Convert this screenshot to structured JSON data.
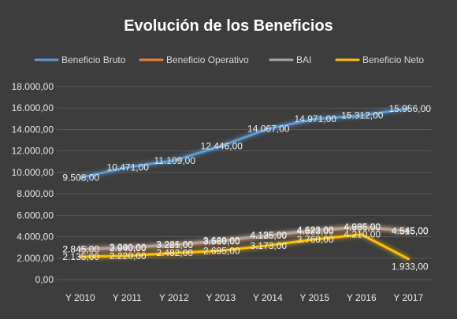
{
  "chart_data": {
    "type": "line",
    "title": "Evolución de los Beneficios",
    "xlabel": "",
    "ylabel": "",
    "categories": [
      "Y 2010",
      "Y 2011",
      "Y 2012",
      "Y 2013",
      "Y 2014",
      "Y 2015",
      "Y 2016",
      "Y 2017"
    ],
    "ylim": [
      0,
      18000
    ],
    "yticks": [
      "0,00",
      "2.000,00",
      "4.000,00",
      "6.000,00",
      "8.000,00",
      "10.000,00",
      "12.000,00",
      "14.000,00",
      "16.000,00",
      "18.000,00"
    ],
    "grid": true,
    "legend_position": "top",
    "series": [
      {
        "name": "Beneficio Bruto",
        "color": "#5b9bd5",
        "values": [
          9508,
          10471,
          11109,
          12446,
          14067,
          14971,
          15312,
          15956
        ],
        "labels": [
          "9.508,00",
          "10.471,00",
          "11.109,00",
          "12.446,00",
          "14.067,00",
          "14.971,00",
          "15.312,00",
          "15.956,00"
        ]
      },
      {
        "name": "Beneficio Operativo",
        "color": "#ed7d31",
        "values": [
          2845,
          2940,
          3225,
          3560,
          4135,
          4523,
          4886,
          4515
        ],
        "labels": [
          "2.845,00",
          "2.940,00",
          "3.225,00",
          "3.560,00",
          "4.135,00",
          "4.523,00",
          "4.886,00",
          "4.515,00"
        ]
      },
      {
        "name": "BAI",
        "color": "#a5a5a5",
        "values": [
          2845,
          3000,
          3281,
          3629,
          4125,
          4622,
          4935,
          4545
        ],
        "labels": [
          "2.845,00",
          "3.000,00",
          "3.281,00",
          "3.629,00",
          "4.125,00",
          "4.622,00",
          "4.935,00",
          "4.545,00"
        ]
      },
      {
        "name": "Beneficio Neto",
        "color": "#ffc000",
        "values": [
          2135,
          2220,
          2482,
          2695,
          3173,
          3760,
          4210,
          1933
        ],
        "labels": [
          "2.135,00",
          "2.220,00",
          "2.482,00",
          "2.695,00",
          "3.173,00",
          "3.760,00",
          "4.210,00",
          "1.933,00"
        ]
      }
    ]
  }
}
